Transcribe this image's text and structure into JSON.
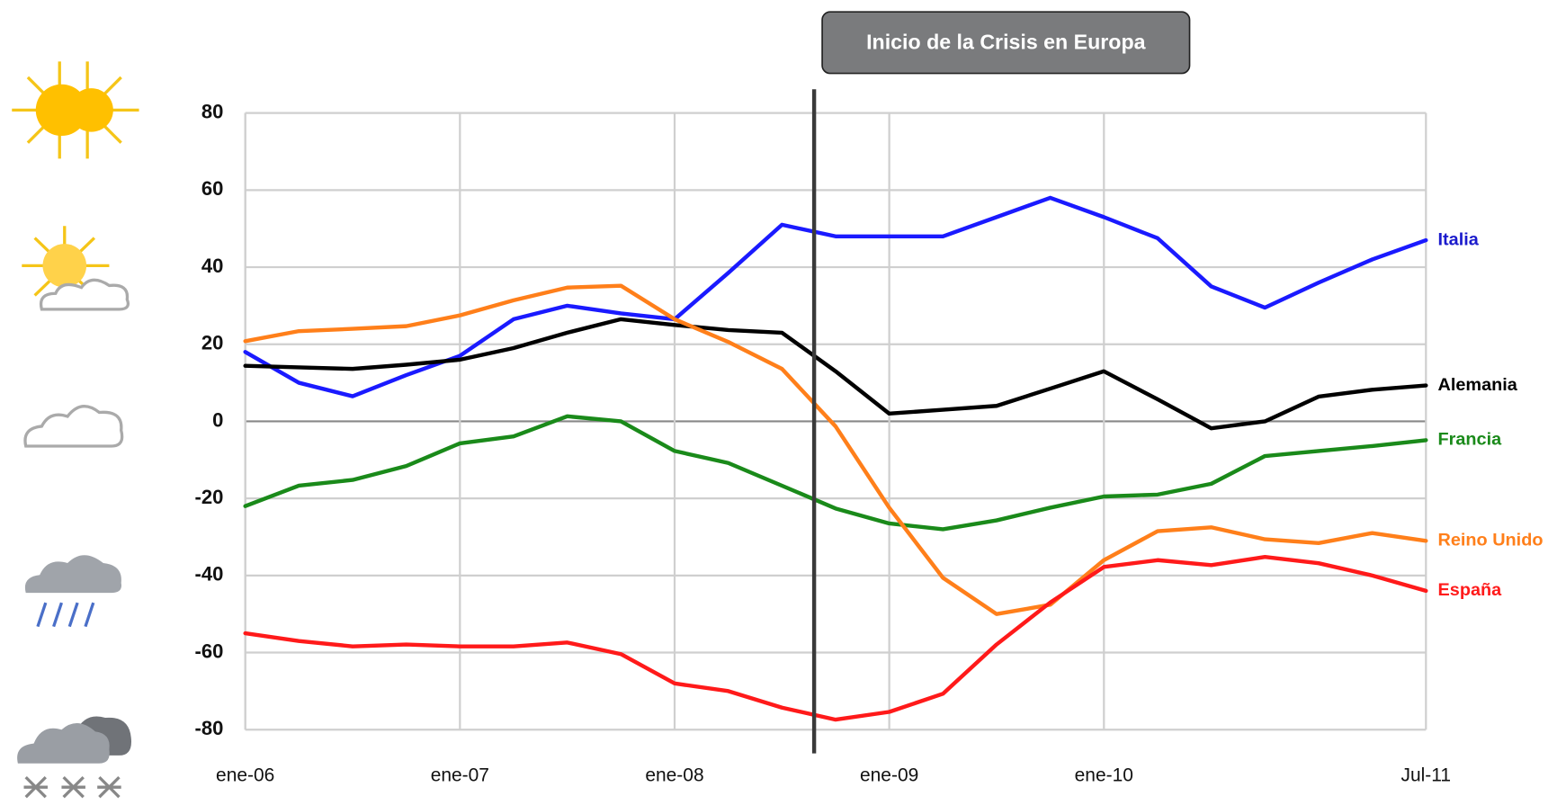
{
  "chart_data": {
    "type": "line",
    "annotation": {
      "text": "Inicio de la Crisis en Europa",
      "x": 31.8
    },
    "x": [
      0,
      3,
      6,
      9,
      12,
      15,
      18,
      21,
      24,
      27,
      30,
      33,
      36,
      39,
      42,
      45,
      48,
      51,
      54,
      57,
      60,
      63,
      66
    ],
    "xlim": [
      0,
      66
    ],
    "xticks": [
      {
        "value": 0,
        "label": "ene-06"
      },
      {
        "value": 12,
        "label": "ene-07"
      },
      {
        "value": 24,
        "label": "ene-08"
      },
      {
        "value": 36,
        "label": "ene-09"
      },
      {
        "value": 48,
        "label": "ene-10"
      },
      {
        "value": 66,
        "label": "Jul-11"
      }
    ],
    "ylim": [
      -80,
      80
    ],
    "yticks": [
      -80,
      -60,
      -40,
      -20,
      0,
      20,
      40,
      60,
      80
    ],
    "grid": true,
    "series": [
      {
        "name": "Italia",
        "color": "#1a1aff",
        "label_color": "#1a1acc",
        "values": [
          18,
          10,
          6.5,
          12,
          17,
          26.5,
          30,
          28,
          26.5,
          38.5,
          51,
          48,
          48,
          48,
          53,
          58,
          53,
          47.5,
          35,
          29.5,
          36,
          42,
          47
        ]
      },
      {
        "name": "Alemania",
        "color": "#000000",
        "label_color": "#000000",
        "values": [
          14.4,
          14,
          13.6,
          14.7,
          16,
          19,
          23,
          26.5,
          25,
          23.7,
          23,
          13,
          2,
          3,
          4,
          8.5,
          13,
          5.7,
          -1.8,
          0,
          6.4,
          8.2,
          9.3
        ]
      },
      {
        "name": "Francia",
        "color": "#1a8a1a",
        "label_color": "#1a8a1a",
        "values": [
          -22,
          -16.7,
          -15.2,
          -11.6,
          -5.7,
          -3.9,
          1.3,
          0,
          -7.7,
          -10.8,
          -16.7,
          -22.6,
          -26.5,
          -28,
          -25.7,
          -22.4,
          -19.5,
          -19,
          -16.2,
          -9,
          -7.7,
          -6.4,
          -4.9
        ]
      },
      {
        "name": "Reino Unido",
        "color": "#ff7f1a",
        "label_color": "#ff7f1a",
        "values": [
          20.8,
          23.4,
          24,
          24.7,
          27.5,
          31.4,
          34.7,
          35.2,
          26.5,
          20.6,
          13.6,
          -1.3,
          -22.4,
          -40.6,
          -50,
          -47.6,
          -36,
          -28.5,
          -27.5,
          -30.6,
          -31.6,
          -29,
          -31
        ]
      },
      {
        "name": "España",
        "color": "#ff1a1a",
        "label_color": "#ff1a1a",
        "values": [
          -55,
          -57,
          -58.4,
          -57.9,
          -58.4,
          -58.4,
          -57.4,
          -60.4,
          -68,
          -70,
          -74.3,
          -77.4,
          -75.4,
          -70.7,
          -57.9,
          -47,
          -37.8,
          -36,
          -37.3,
          -35.2,
          -36.8,
          -40,
          -44
        ]
      }
    ]
  }
}
